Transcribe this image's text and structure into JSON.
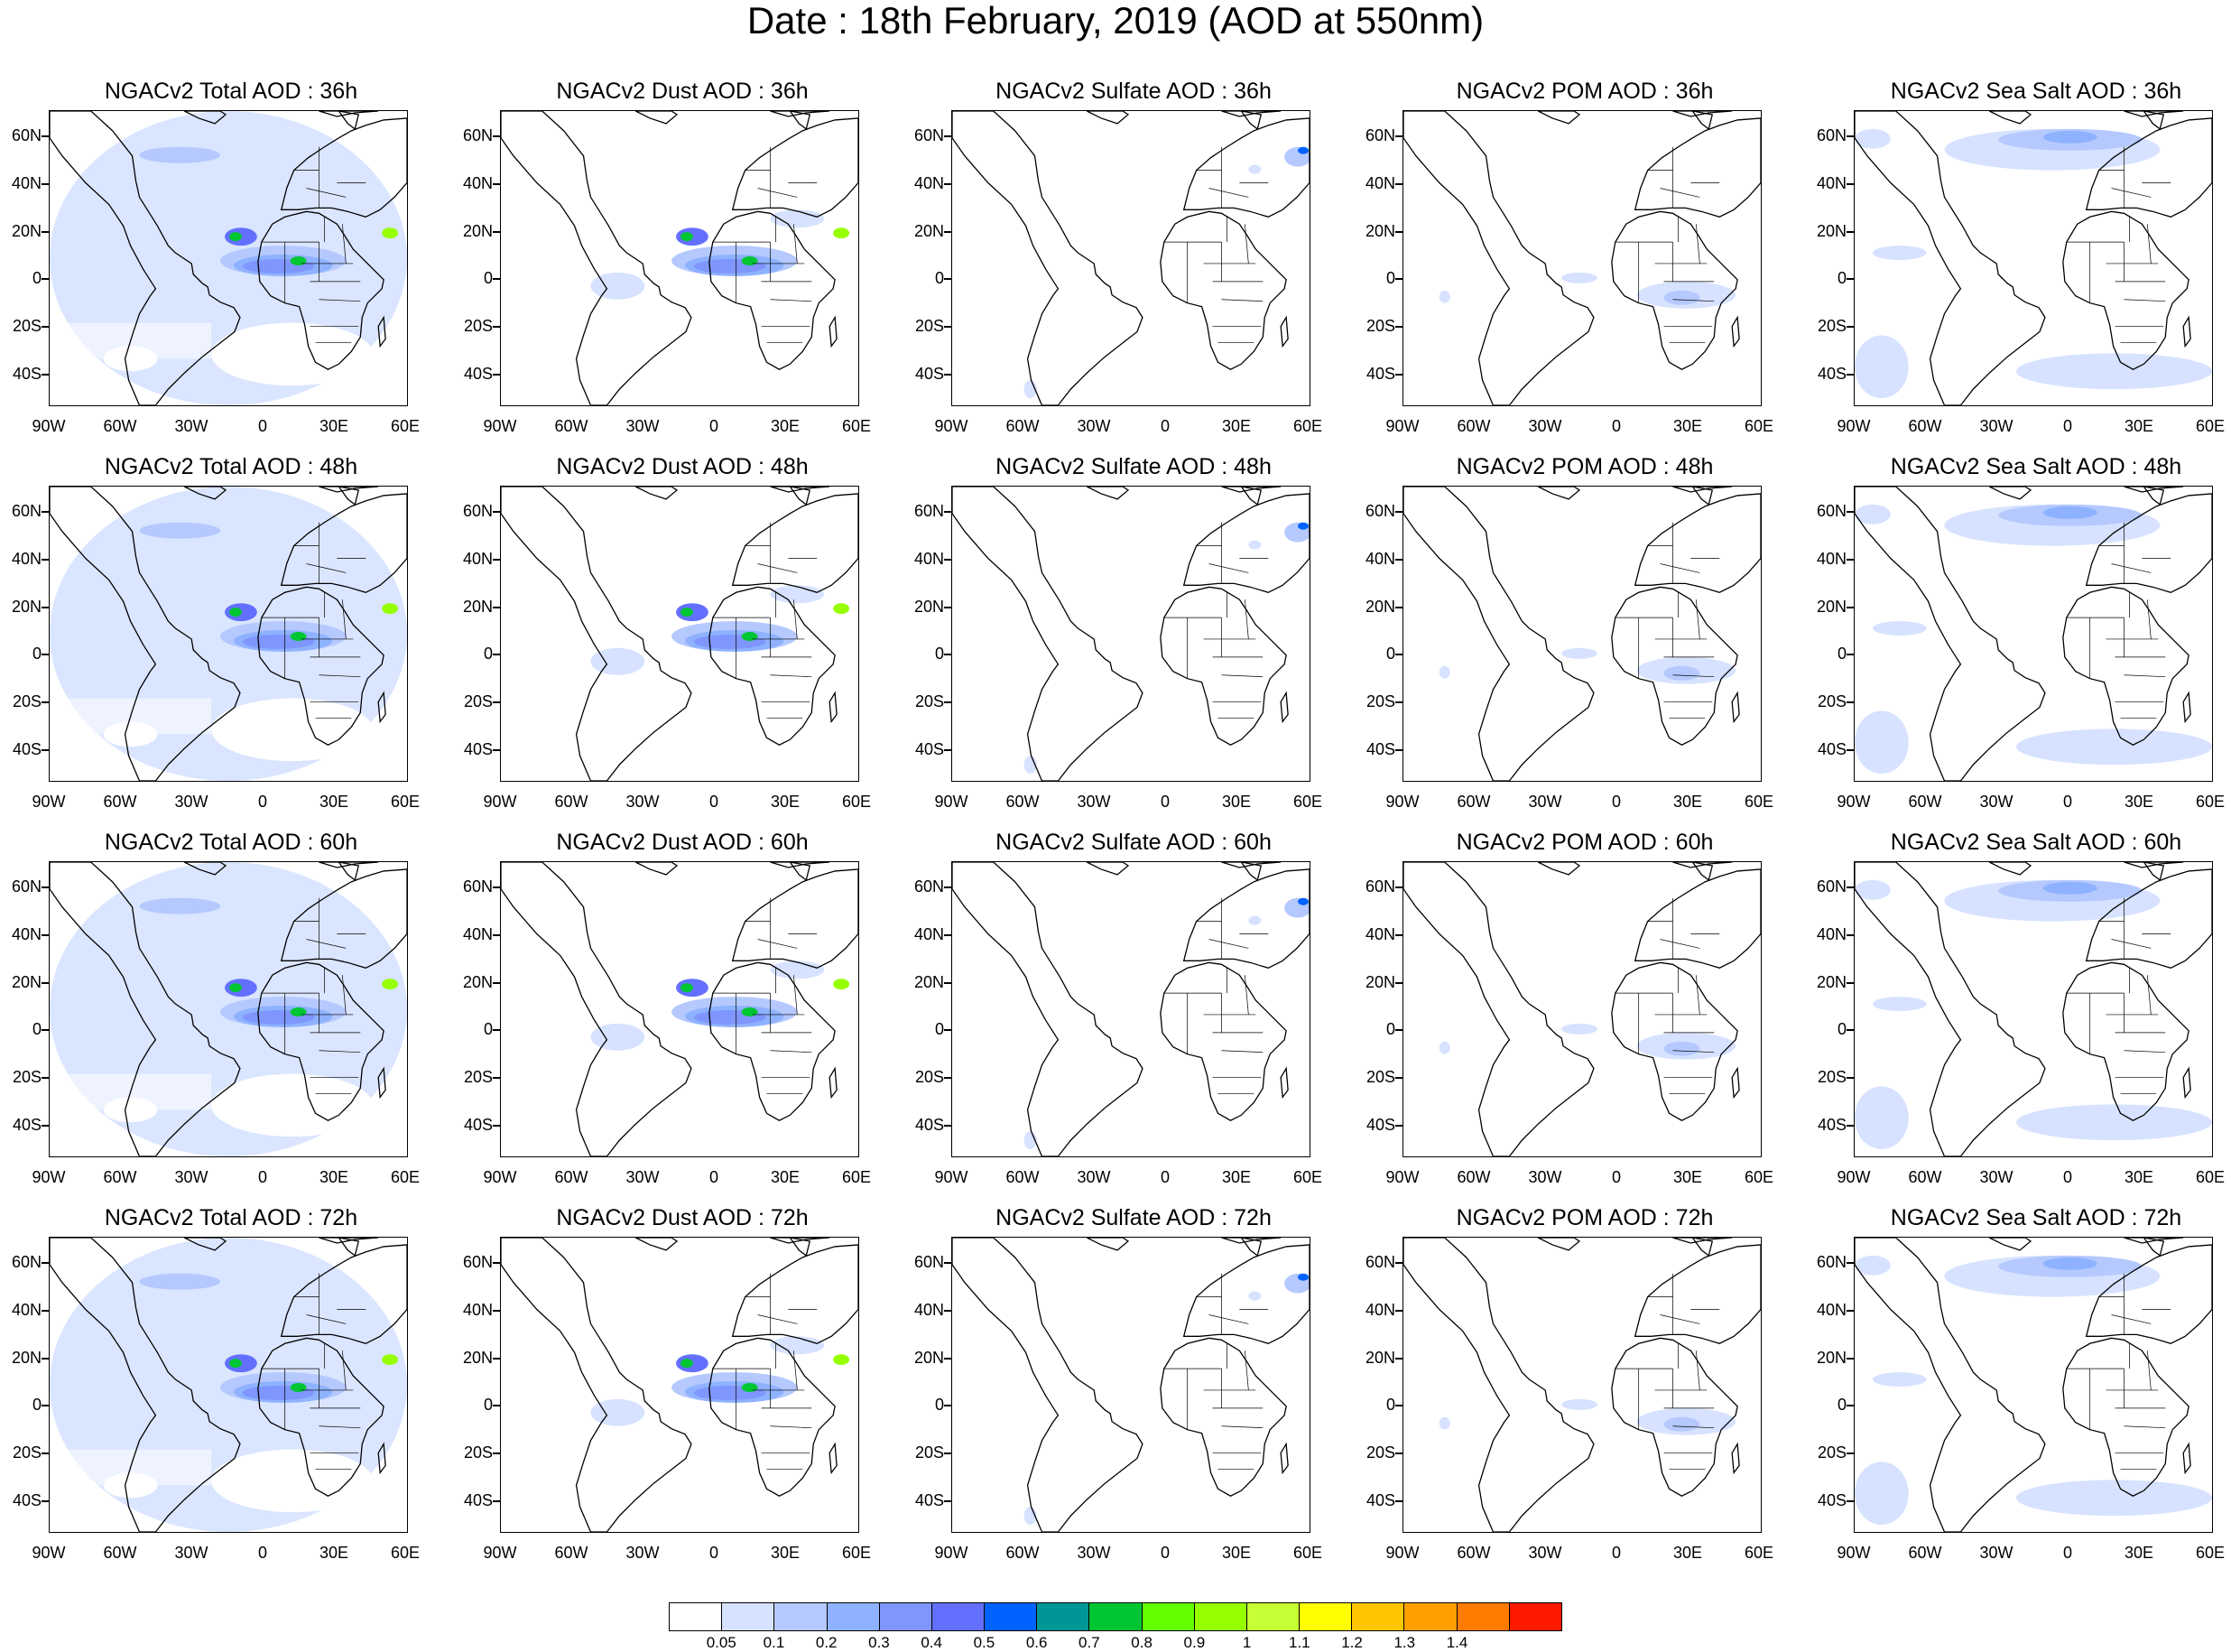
{
  "title": "Date : 18th February, 2019 (AOD at 550nm)",
  "lat_labels": [
    "60N",
    "40N",
    "20N",
    "0",
    "20S",
    "40S"
  ],
  "lon_labels": [
    "90W",
    "60W",
    "30W",
    "0",
    "30E",
    "60E"
  ],
  "panels": [
    {
      "title": "NGACv2 Total AOD : 36h",
      "species": "total"
    },
    {
      "title": "NGACv2 Dust AOD : 36h",
      "species": "dust"
    },
    {
      "title": "NGACv2 Sulfate AOD : 36h",
      "species": "sulfate"
    },
    {
      "title": "NGACv2 POM AOD : 36h",
      "species": "pom"
    },
    {
      "title": "NGACv2 Sea Salt AOD : 36h",
      "species": "seasalt"
    },
    {
      "title": "NGACv2 Total AOD : 48h",
      "species": "total"
    },
    {
      "title": "NGACv2 Dust AOD : 48h",
      "species": "dust"
    },
    {
      "title": "NGACv2 Sulfate AOD : 48h",
      "species": "sulfate"
    },
    {
      "title": "NGACv2 POM AOD : 48h",
      "species": "pom"
    },
    {
      "title": "NGACv2 Sea Salt AOD : 48h",
      "species": "seasalt"
    },
    {
      "title": "NGACv2 Total AOD : 60h",
      "species": "total"
    },
    {
      "title": "NGACv2 Dust AOD : 60h",
      "species": "dust"
    },
    {
      "title": "NGACv2 Sulfate AOD : 60h",
      "species": "sulfate"
    },
    {
      "title": "NGACv2 POM AOD : 60h",
      "species": "pom"
    },
    {
      "title": "NGACv2 Sea Salt AOD : 60h",
      "species": "seasalt"
    },
    {
      "title": "NGACv2 Total AOD : 72h",
      "species": "total"
    },
    {
      "title": "NGACv2 Dust AOD : 72h",
      "species": "dust"
    },
    {
      "title": "NGACv2 Sulfate AOD : 72h",
      "species": "sulfate"
    },
    {
      "title": "NGACv2 POM AOD : 72h",
      "species": "pom"
    },
    {
      "title": "NGACv2 Sea Salt  AOD : 72h",
      "species": "seasalt"
    }
  ],
  "colorbar": {
    "labels": [
      "0.05",
      "0.1",
      "0.2",
      "0.3",
      "0.4",
      "0.5",
      "0.6",
      "0.7",
      "0.8",
      "0.9",
      "1",
      "1.1",
      "1.2",
      "1.3",
      "1.4"
    ],
    "colors": [
      "#ffffff",
      "#d6e2ff",
      "#b5c9ff",
      "#8eb2ff",
      "#7f96ff",
      "#6370ff",
      "#0063ff",
      "#009696",
      "#00c633",
      "#63ff00",
      "#96ff00",
      "#c6ff33",
      "#ffff00",
      "#ffc600",
      "#ffa000",
      "#ff7c00",
      "#ff1900"
    ]
  }
}
